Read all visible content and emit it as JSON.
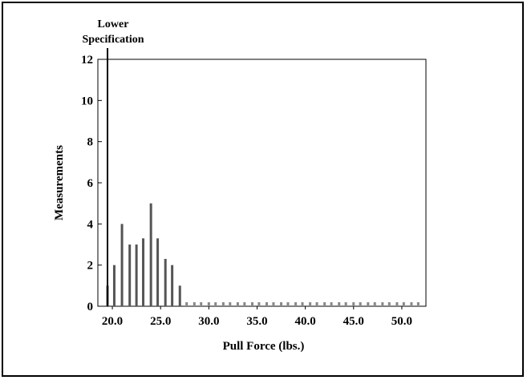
{
  "chart_data": {
    "type": "bar",
    "title": "",
    "xlabel": "Pull Force (lbs.)",
    "ylabel": "Measurements",
    "xlim": [
      18.5,
      52.5
    ],
    "ylim": [
      0,
      12
    ],
    "xticks": [
      20.0,
      25.0,
      30.0,
      35.0,
      40.0,
      45.0,
      50.0
    ],
    "xtick_labels": [
      "20.0",
      "25.0",
      "30.0",
      "35.0",
      "40.0",
      "45.0",
      "50.0"
    ],
    "yticks": [
      0,
      2,
      4,
      6,
      8,
      10,
      12
    ],
    "ytick_labels": [
      "0",
      "2",
      "4",
      "6",
      "8",
      "10",
      "12"
    ],
    "x": [
      19.5,
      20.2,
      21.0,
      21.8,
      22.5,
      23.2,
      24.0,
      24.7,
      25.5,
      26.2,
      27.0,
      27.7,
      28.5,
      29.2,
      30.0,
      30.7,
      31.5,
      32.2,
      33.0,
      33.7,
      34.5,
      35.2,
      36.0,
      36.7,
      37.5,
      38.2,
      39.0,
      39.7,
      40.5,
      41.2,
      42.0,
      42.7,
      43.5,
      44.2,
      45.0,
      45.7,
      46.5,
      47.2,
      48.0,
      48.7,
      49.5,
      50.2,
      51.0,
      51.7
    ],
    "values": [
      1,
      2,
      4,
      3,
      3,
      3.3,
      5,
      3.3,
      2.3,
      2,
      1,
      0,
      0,
      0,
      0,
      0,
      0,
      0,
      0,
      0,
      0,
      0,
      0,
      0,
      0,
      0,
      0,
      0,
      0,
      0,
      0,
      0,
      0,
      0,
      0,
      0,
      0,
      0,
      0,
      0,
      0,
      0,
      0,
      0
    ],
    "spec_limit": {
      "x": 19.5,
      "label_line1": "Lower",
      "label_line2": "Specification"
    },
    "grid": false,
    "legend": "none"
  }
}
